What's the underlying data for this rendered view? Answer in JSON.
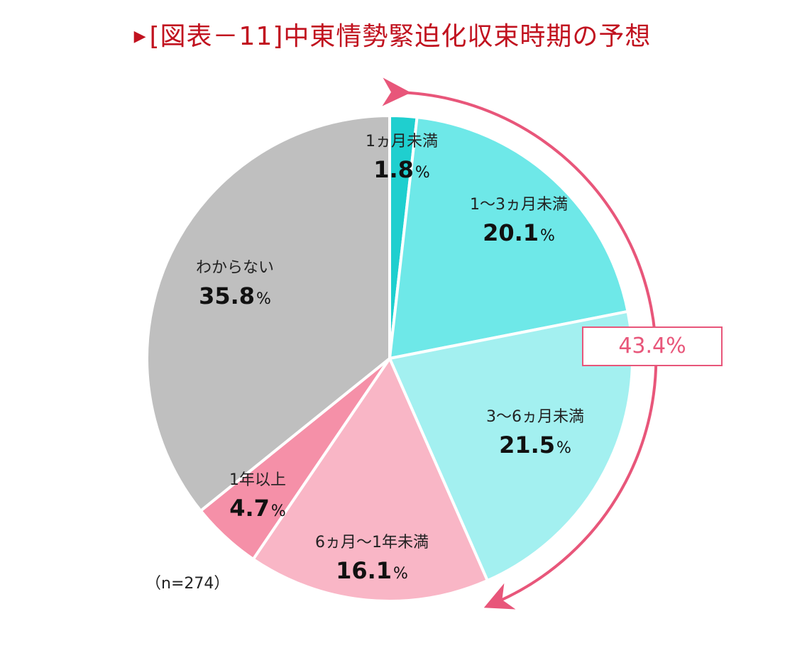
{
  "title": "[図表－11]中東情勢緊迫化収束時期の予想",
  "title_marker": "▶",
  "sample_size": "（n=274）",
  "highlight": {
    "value_text": "43.4%",
    "value": 43.4,
    "color": "#e8567a"
  },
  "colors": {
    "title": "#c1121f",
    "separator": "#ffffff"
  },
  "chart_data": {
    "type": "pie",
    "start_angle": "top",
    "direction": "clockwise",
    "unit": "%",
    "slices": [
      {
        "label": "1ヵ月未満",
        "value": 1.8,
        "display": "1.8",
        "color": "#1fcfcf"
      },
      {
        "label": "1～3ヵ月未満",
        "value": 20.1,
        "display": "20.1",
        "color": "#6ee8e8"
      },
      {
        "label": "3～6ヵ月未満",
        "value": 21.5,
        "display": "21.5",
        "color": "#a3f0f0"
      },
      {
        "label": "6ヵ月～1年未満",
        "value": 16.1,
        "display": "16.1",
        "color": "#f9b6c6"
      },
      {
        "label": "1年以上",
        "value": 4.7,
        "display": "4.7",
        "color": "#f590a8"
      },
      {
        "label": "わからない",
        "value": 35.8,
        "display": "35.8",
        "color": "#bfbfbf"
      }
    ]
  }
}
